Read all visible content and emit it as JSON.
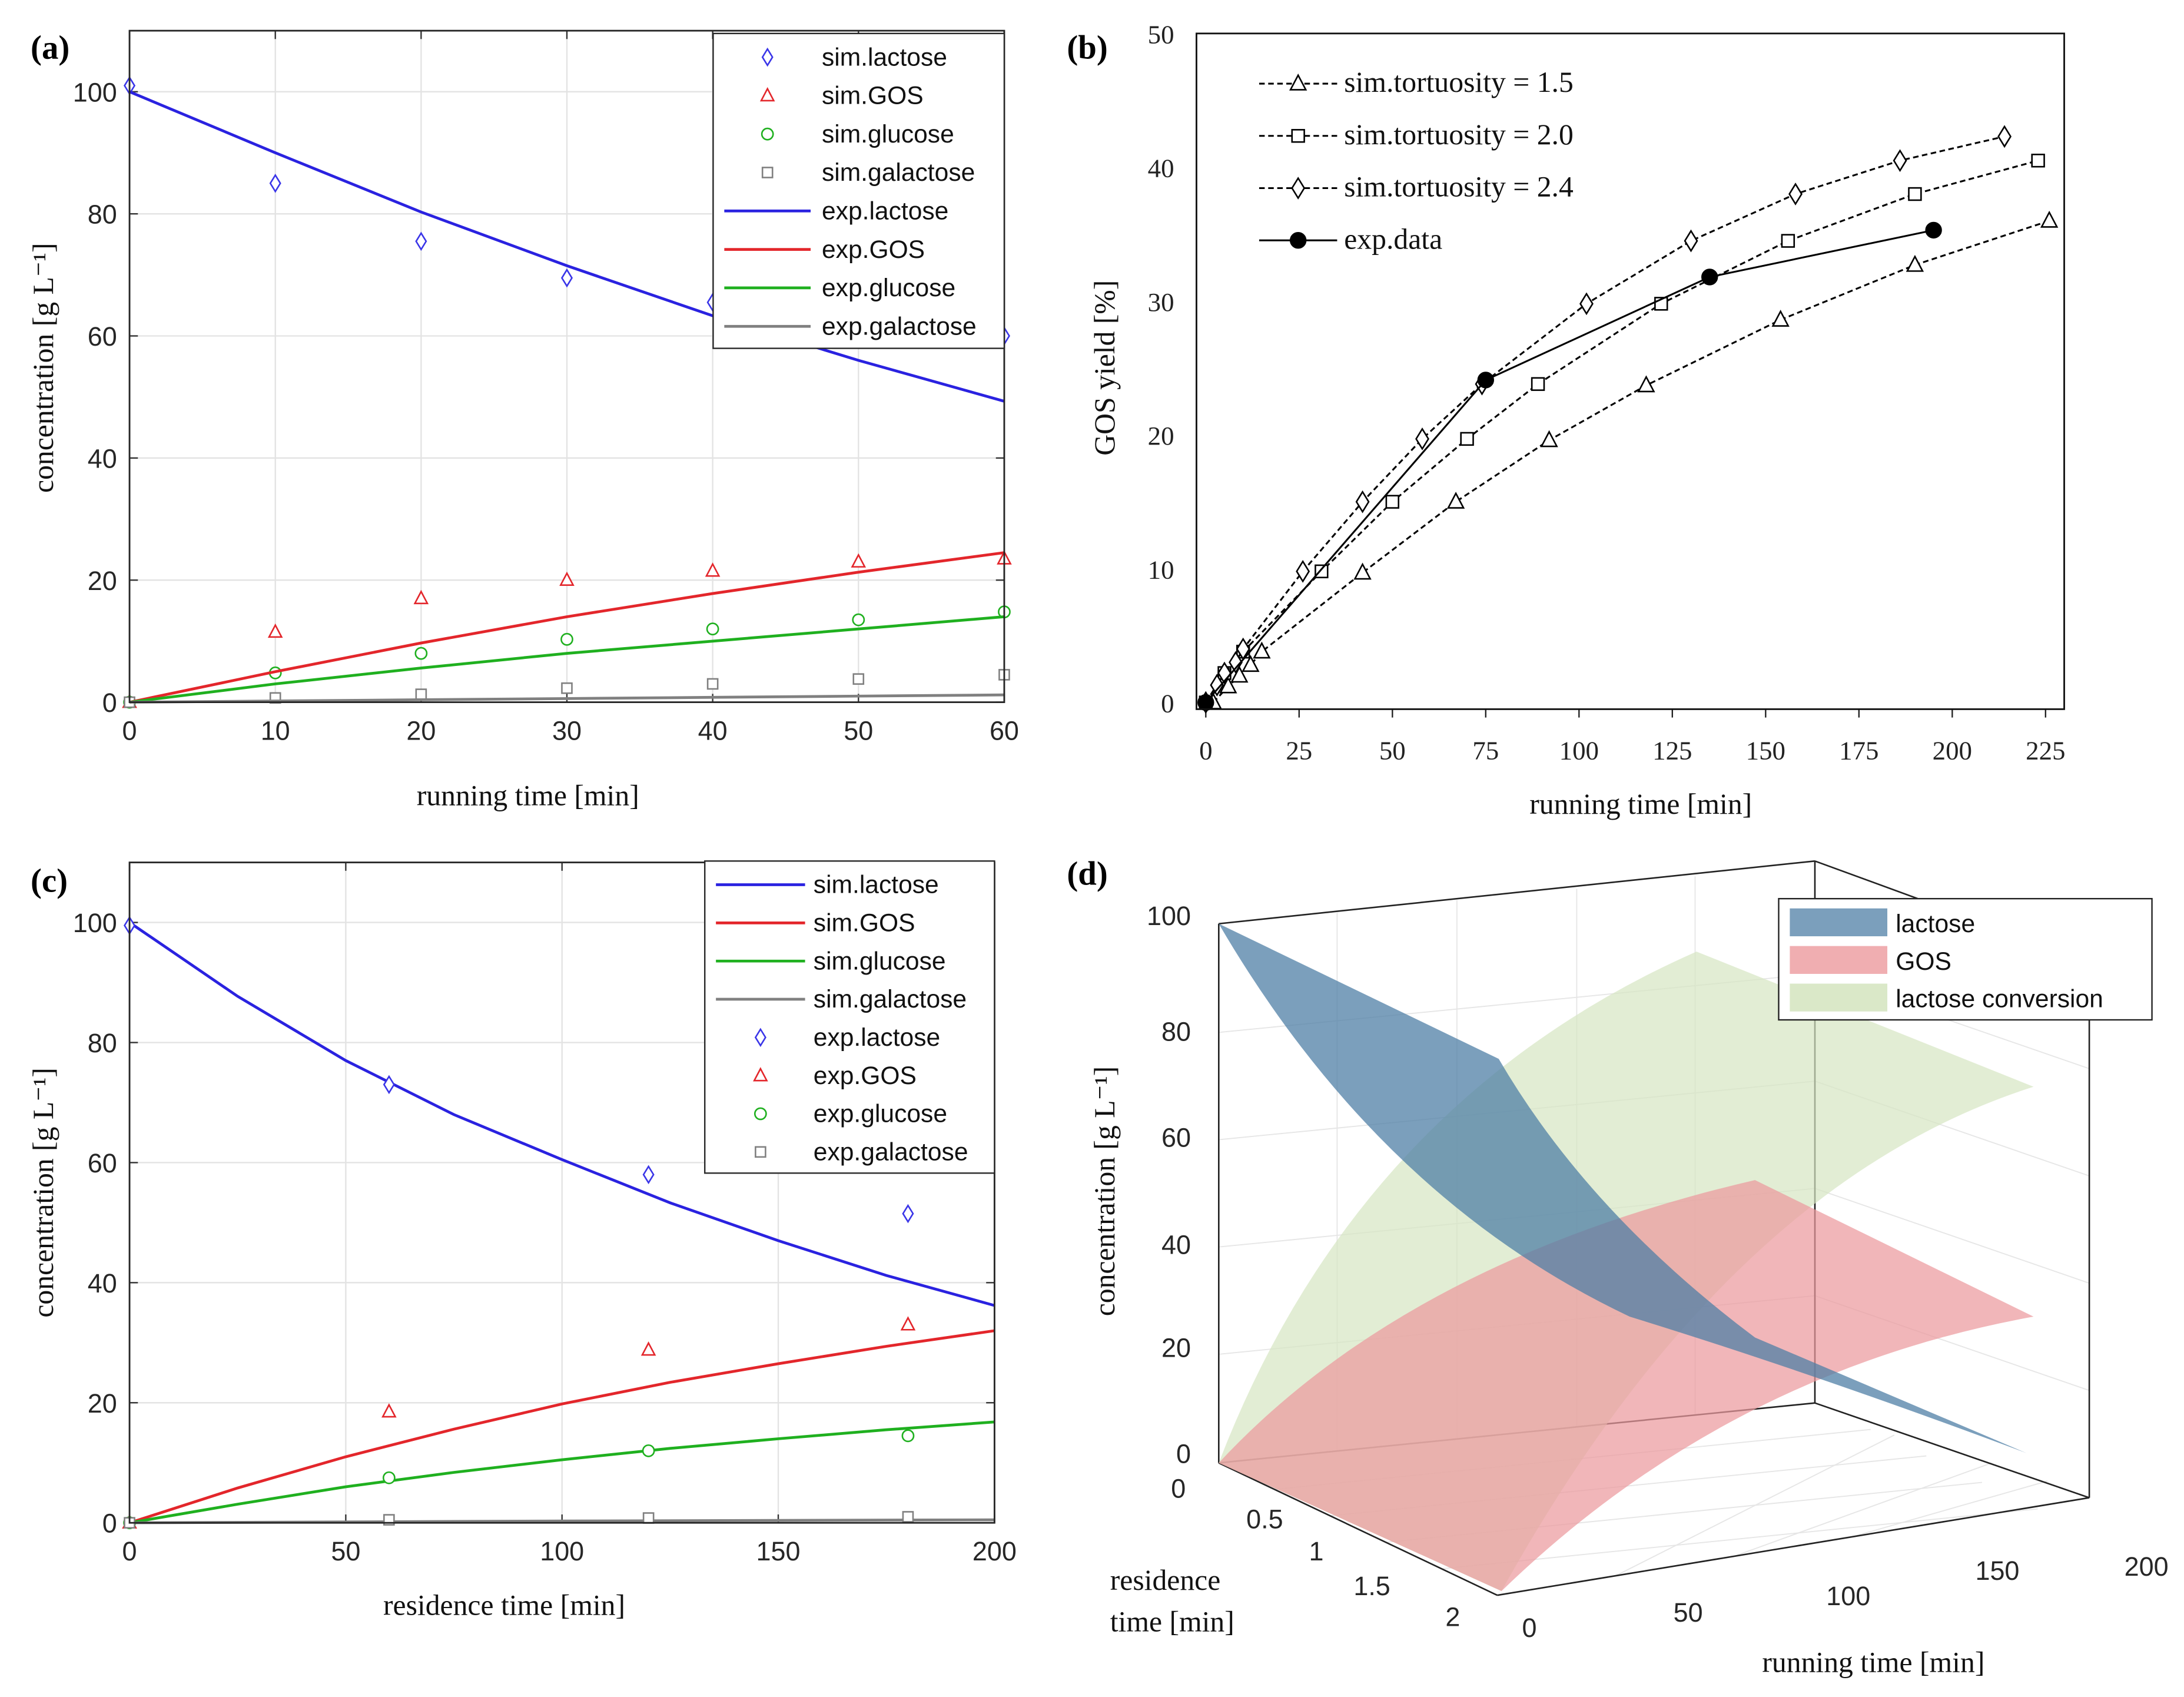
{
  "chart_data": [
    {
      "panel_label": "(a)",
      "type": "scatter+line",
      "xlabel": "running time [min]",
      "ylabel": "concentration [g L⁻¹]",
      "xlim": [
        0,
        60
      ],
      "ylim": [
        0,
        110
      ],
      "xticks": [
        0,
        10,
        20,
        30,
        40,
        50,
        60
      ],
      "yticks": [
        0,
        20,
        40,
        60,
        80,
        100
      ],
      "grid": true,
      "legend": "top-right",
      "series": [
        {
          "name": "sim.lactose",
          "style": "marker",
          "marker": "diamond",
          "color": "#3a35e8",
          "x": [
            0,
            10,
            20,
            30,
            40,
            50,
            60
          ],
          "y": [
            101,
            85,
            75.5,
            69.5,
            65.5,
            62,
            60
          ]
        },
        {
          "name": "sim.GOS",
          "style": "marker",
          "marker": "triangle",
          "color": "#e3262b",
          "x": [
            0,
            10,
            20,
            30,
            40,
            50,
            60
          ],
          "y": [
            0,
            11.5,
            17,
            20,
            21.5,
            23,
            23.5
          ]
        },
        {
          "name": "sim.glucose",
          "style": "marker",
          "marker": "circle",
          "color": "#1fb01f",
          "x": [
            0,
            10,
            20,
            30,
            40,
            50,
            60
          ],
          "y": [
            0,
            4.8,
            8,
            10.3,
            12,
            13.5,
            14.8
          ]
        },
        {
          "name": "sim.galactose",
          "style": "marker",
          "marker": "square",
          "color": "#808080",
          "x": [
            0,
            10,
            20,
            30,
            40,
            50,
            60
          ],
          "y": [
            0,
            0.7,
            1.3,
            2.3,
            3,
            3.8,
            4.5
          ]
        },
        {
          "name": "exp.lactose",
          "style": "line",
          "color": "#2a22e0",
          "x": [
            0,
            10,
            20,
            30,
            40,
            50,
            60
          ],
          "y": [
            100,
            90,
            80.3,
            71.5,
            63.3,
            56,
            49.3
          ]
        },
        {
          "name": "exp.GOS",
          "style": "line",
          "color": "#e3262b",
          "x": [
            0,
            10,
            20,
            30,
            40,
            50,
            60
          ],
          "y": [
            0,
            5,
            9.7,
            14,
            17.8,
            21.3,
            24.5
          ]
        },
        {
          "name": "exp.glucose",
          "style": "line",
          "color": "#1fb01f",
          "x": [
            0,
            10,
            20,
            30,
            40,
            50,
            60
          ],
          "y": [
            0,
            3,
            5.6,
            8,
            10,
            12,
            14
          ]
        },
        {
          "name": "exp.galactose",
          "style": "line",
          "color": "#808080",
          "x": [
            0,
            10,
            20,
            30,
            40,
            50,
            60
          ],
          "y": [
            0,
            0.2,
            0.4,
            0.6,
            0.8,
            1,
            1.2
          ]
        }
      ]
    },
    {
      "panel_label": "(b)",
      "type": "line",
      "xlabel": "running time [min]",
      "ylabel": "GOS yield [%]",
      "xlim": [
        -2.5,
        230
      ],
      "ylim": [
        -0.5,
        50
      ],
      "xticks": [
        0,
        25,
        50,
        75,
        100,
        125,
        150,
        175,
        200,
        225
      ],
      "yticks": [
        0,
        10,
        20,
        30,
        40,
        50
      ],
      "grid": false,
      "legend": "top-left",
      "series": [
        {
          "name": "sim.tortuosity = 1.5",
          "style": "dashed",
          "marker": "triangle",
          "color": "#000000",
          "x": [
            2,
            6,
            9,
            12,
            15,
            42,
            67,
            92,
            118,
            154,
            190,
            226
          ],
          "y": [
            0,
            1.2,
            2,
            2.8,
            3.8,
            9.7,
            15,
            19.6,
            23.7,
            28.6,
            32.7,
            36
          ]
        },
        {
          "name": "sim.tortuosity = 2.0",
          "style": "dashed",
          "marker": "square",
          "color": "#000000",
          "x": [
            0,
            5,
            10,
            31,
            50,
            70,
            89,
            122,
            156,
            190,
            223
          ],
          "y": [
            0,
            2.2,
            3.8,
            9.8,
            15,
            19.7,
            23.8,
            29.8,
            34.5,
            38,
            40.5
          ]
        },
        {
          "name": "sim.tortuosity = 2.4",
          "style": "dashed",
          "marker": "diamond",
          "color": "#000000",
          "x": [
            0,
            3,
            5,
            8,
            10,
            26,
            42,
            58,
            74,
            102,
            130,
            158,
            186,
            214
          ],
          "y": [
            0,
            1.3,
            2.2,
            3,
            4,
            9.8,
            15,
            19.7,
            23.8,
            29.8,
            34.5,
            38,
            40.5,
            42.3
          ]
        },
        {
          "name": "exp.data",
          "style": "solid",
          "marker": "filled-circle",
          "color": "#000000",
          "x": [
            0,
            75,
            135,
            195
          ],
          "y": [
            0,
            24.1,
            31.8,
            35.3
          ]
        }
      ]
    },
    {
      "panel_label": "(c)",
      "type": "scatter+line",
      "xlabel": "residence time [min]",
      "ylabel": "concentration [g L⁻¹]",
      "xlim": [
        0,
        200
      ],
      "ylim": [
        0,
        110
      ],
      "xticks": [
        0,
        50,
        100,
        150,
        200
      ],
      "yticks": [
        0,
        20,
        40,
        60,
        80,
        100
      ],
      "grid": true,
      "legend": "top-right",
      "series": [
        {
          "name": "sim.lactose",
          "style": "line",
          "color": "#2a22e0",
          "x": [
            0,
            25,
            50,
            75,
            100,
            125,
            150,
            175,
            200
          ],
          "y": [
            100,
            87.7,
            77,
            68,
            60.5,
            53.3,
            47,
            41.2,
            36.2
          ]
        },
        {
          "name": "sim.GOS",
          "style": "line",
          "color": "#e3262b",
          "x": [
            0,
            25,
            50,
            75,
            100,
            125,
            150,
            175,
            200
          ],
          "y": [
            0,
            5.8,
            11,
            15.6,
            19.8,
            23.4,
            26.5,
            29.4,
            32
          ]
        },
        {
          "name": "sim.glucose",
          "style": "line",
          "color": "#1fb01f",
          "x": [
            0,
            25,
            50,
            75,
            100,
            125,
            150,
            175,
            200
          ],
          "y": [
            0,
            3.1,
            6,
            8.4,
            10.5,
            12.4,
            14,
            15.5,
            16.8
          ]
        },
        {
          "name": "sim.galactose",
          "style": "line",
          "color": "#808080",
          "x": [
            0,
            100,
            200
          ],
          "y": [
            0,
            0.3,
            0.5
          ]
        },
        {
          "name": "exp.lactose",
          "style": "marker",
          "marker": "diamond",
          "color": "#3a35e8",
          "x": [
            0,
            60,
            120,
            180
          ],
          "y": [
            99.5,
            73,
            58,
            51.5
          ]
        },
        {
          "name": "exp.GOS",
          "style": "marker",
          "marker": "triangle",
          "color": "#e3262b",
          "x": [
            0,
            60,
            120,
            180
          ],
          "y": [
            0,
            18.5,
            28.8,
            33
          ]
        },
        {
          "name": "exp.glucose",
          "style": "marker",
          "marker": "circle",
          "color": "#1fb01f",
          "x": [
            0,
            60,
            120,
            180
          ],
          "y": [
            0,
            7.5,
            12,
            14.5
          ]
        },
        {
          "name": "exp.galactose",
          "style": "marker",
          "marker": "square",
          "color": "#808080",
          "x": [
            0,
            60,
            120,
            180
          ],
          "y": [
            0,
            0.5,
            0.8,
            1
          ]
        }
      ]
    },
    {
      "panel_label": "(d)",
      "type": "surface3d",
      "xlabel": "running time [min]",
      "ylabel_lines": [
        "residence",
        "time [min]"
      ],
      "zlabel": "concentration [g L⁻¹]",
      "x_ticks": [
        "0",
        "50",
        "100",
        "150",
        "200"
      ],
      "y_ticks": [
        "0",
        "0.5",
        "1",
        "1.5",
        "2"
      ],
      "z_ticks": [
        "0",
        "20",
        "40",
        "60",
        "80",
        "100"
      ],
      "legend": "top-right",
      "series": [
        {
          "name": "lactose",
          "color": "#4f7fa6"
        },
        {
          "name": "GOS",
          "color": "#ec9a9e"
        },
        {
          "name": "lactose conversion",
          "color": "#d6e6c2"
        }
      ]
    }
  ]
}
